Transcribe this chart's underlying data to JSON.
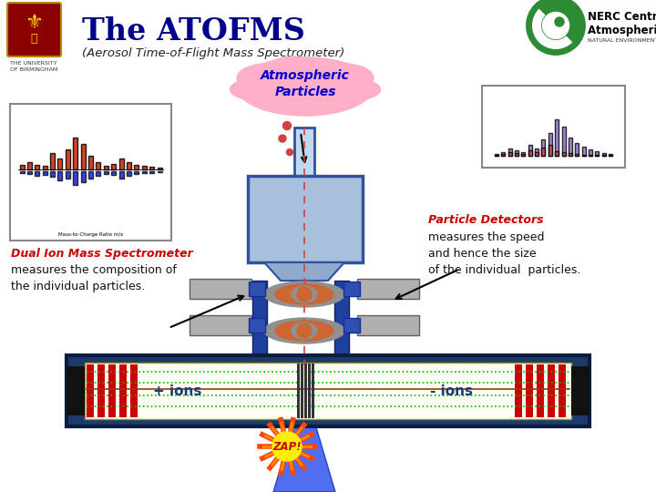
{
  "title": "The ATOFMS",
  "subtitle": "(Aerosol Time-of-Flight Mass Spectrometer)",
  "title_color": "#00008B",
  "bg_color": "#ffffff",
  "cloud_text": "Atmospheric\nParticles",
  "cloud_color": "#FFB0C8",
  "cloud_text_color": "#0000CC",
  "left_label_title": "Dual Ion Mass Spectrometer",
  "left_label_body": "measures the composition of\nthe individual particles.",
  "right_label_title": "Particle Detectors",
  "right_label_body": "measures the speed\nand hence the size\nof the individual  particles.",
  "zap_text": "ZAP!",
  "ions_plus": "+ ions",
  "ions_minus": "- ions",
  "tof_dark": "#1C3A6B",
  "tof_inner": "#FFFFF0",
  "red_bar": "#CC0000",
  "green_dot": "#00BB00",
  "instrument_blue": "#3050A0",
  "instrument_light": "#B8CCE4",
  "chamber_color": "#A8C0DC",
  "inlet_color": "#C0D8F0",
  "detector_gray": "#B0B0B0",
  "detector_orange": "#CC6633",
  "pillar_blue": "#2040A0",
  "nerc_green": "#2E8B35",
  "laser_blue": "#3355EE"
}
